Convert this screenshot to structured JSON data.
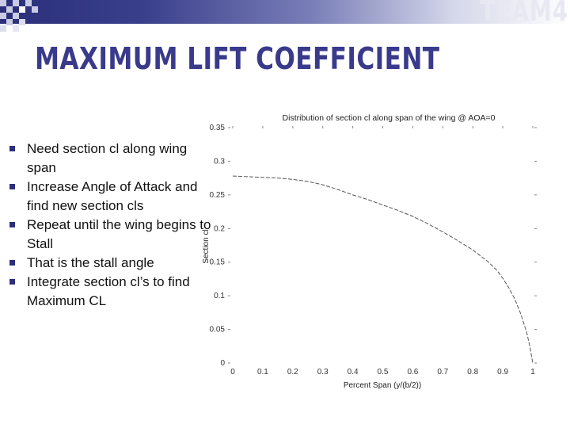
{
  "slide": {
    "brand": "TEAM4",
    "title": "MAXIMUM LIFT COEFFICIENT",
    "bullets": [
      "Need section cl along wing span",
      "Increase Angle of Attack and find new section cls",
      "Repeat until the wing begins to Stall",
      "That is the stall angle",
      "Integrate section cl’s to find Maximum CL"
    ]
  },
  "colors": {
    "title": "#3a3a8c",
    "band": "#2b2f7a",
    "line": "#555555"
  },
  "chart_data": {
    "type": "line",
    "title": "Distribution of section cl along span of the wing @ AOA=0",
    "xlabel": "Percent Span (y/(b/2))",
    "ylabel": "Section cl",
    "xlim": [
      0,
      1
    ],
    "ylim": [
      0,
      0.35
    ],
    "x_ticks": [
      "0",
      "0.1",
      "0.2",
      "0.3",
      "0.4",
      "0.5",
      "0.6",
      "0.7",
      "0.8",
      "0.9",
      "1"
    ],
    "y_ticks": [
      "0",
      "0.05",
      "0.1",
      "0.15",
      "0.2",
      "0.25",
      "0.3",
      "0.35"
    ],
    "grid": false,
    "series": [
      {
        "x": [
          0,
          0.05,
          0.1,
          0.15,
          0.2,
          0.25,
          0.3,
          0.35,
          0.4,
          0.45,
          0.5,
          0.55,
          0.6,
          0.65,
          0.7,
          0.75,
          0.8,
          0.85,
          0.88,
          0.9,
          0.92,
          0.94,
          0.96,
          0.98,
          0.99,
          1.0
        ],
        "y": [
          0.278,
          0.277,
          0.276,
          0.275,
          0.273,
          0.27,
          0.265,
          0.258,
          0.25,
          0.243,
          0.235,
          0.227,
          0.218,
          0.207,
          0.195,
          0.182,
          0.168,
          0.151,
          0.138,
          0.126,
          0.112,
          0.095,
          0.073,
          0.045,
          0.025,
          0.0
        ]
      }
    ]
  }
}
